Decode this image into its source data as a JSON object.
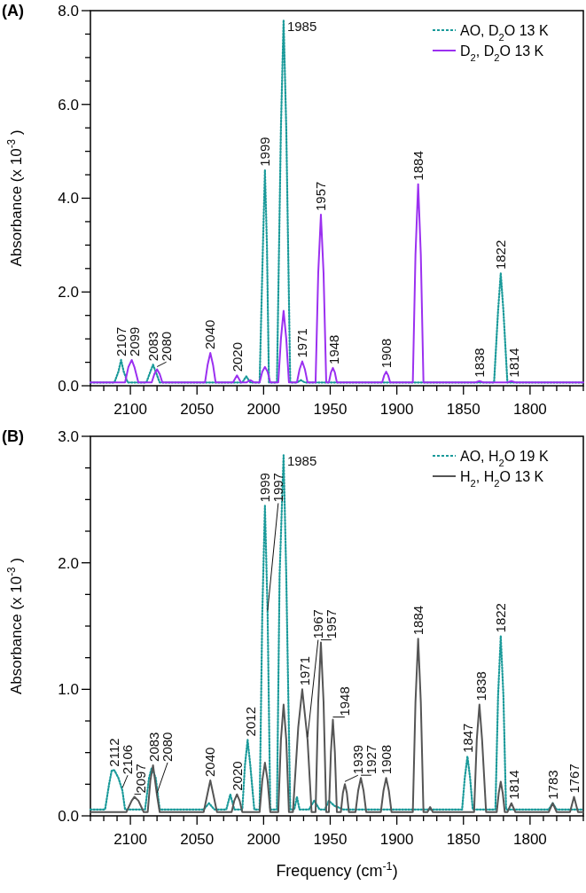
{
  "chart_data": [
    {
      "type": "line",
      "title": "(A)",
      "ylabel": "Absorbance (x 10$^{-3}$ )",
      "legend": "top right",
      "xlim": [
        2130,
        1760
      ],
      "ylim": [
        0,
        8
      ],
      "xticks": [
        {
          "value": 2130,
          "label": null
        },
        {
          "value": 2120,
          "label": null
        },
        {
          "value": 2110,
          "label": null
        },
        2100,
        {
          "value": 2090,
          "label": null
        },
        {
          "value": 2080,
          "label": null
        },
        {
          "value": 2070,
          "label": null
        },
        {
          "value": 2060,
          "label": null
        },
        2050,
        {
          "value": 2040,
          "label": null
        },
        {
          "value": 2030,
          "label": null
        },
        {
          "value": 2020,
          "label": null
        },
        {
          "value": 2010,
          "label": null
        },
        2000,
        {
          "value": 1990,
          "label": null
        },
        {
          "value": 1980,
          "label": null
        },
        {
          "value": 1970,
          "label": null
        },
        {
          "value": 1960,
          "label": null
        },
        1950,
        {
          "value": 1940,
          "label": null
        },
        {
          "value": 1930,
          "label": null
        },
        {
          "value": 1920,
          "label": null
        },
        {
          "value": 1910,
          "label": null
        },
        1900,
        {
          "value": 1890,
          "label": null
        },
        {
          "value": 1880,
          "label": null
        },
        {
          "value": 1870,
          "label": null
        },
        {
          "value": 1860,
          "label": null
        },
        1850,
        {
          "value": 1840,
          "label": null
        },
        {
          "value": 1830,
          "label": null
        },
        {
          "value": 1820,
          "label": null
        },
        {
          "value": 1810,
          "label": null
        },
        1800,
        {
          "value": 1790,
          "label": null
        },
        {
          "value": 1780,
          "label": null
        },
        {
          "value": 1770,
          "label": null
        },
        {
          "value": 1760,
          "label": null
        }
      ],
      "yticks": [
        {
          "value": 0,
          "label": "0.0"
        },
        {
          "value": 0.5,
          "label": null
        },
        {
          "value": 1,
          "label": null
        },
        {
          "value": 1.5,
          "label": null
        },
        {
          "value": 2,
          "label": "2.0"
        },
        {
          "value": 2.5,
          "label": null
        },
        {
          "value": 3,
          "label": null
        },
        {
          "value": 3.5,
          "label": null
        },
        {
          "value": 4,
          "label": "4.0"
        },
        {
          "value": 4.5,
          "label": null
        },
        {
          "value": 5,
          "label": null
        },
        {
          "value": 5.5,
          "label": null
        },
        {
          "value": 6,
          "label": "6.0"
        },
        {
          "value": 6.5,
          "label": null
        },
        {
          "value": 7,
          "label": null
        },
        {
          "value": 7.5,
          "label": null
        },
        {
          "value": 8,
          "label": "8.0"
        }
      ],
      "series": [
        {
          "name": "AO, D$_{2}$O 13 K",
          "color": "#1a9a9a",
          "line_style": "dotted",
          "x": [
            2130,
            2112,
            2109,
            2107,
            2105,
            2102,
            2088,
            2085,
            2083,
            2081,
            2078,
            2016,
            2013,
            2010,
            2003,
            2000.5,
            1999,
            1997.5,
            1996,
            1990,
            1987,
            1985,
            1983,
            1980,
            1975,
            1972,
            1969,
            1827,
            1824,
            1822,
            1820,
            1817,
            1760
          ],
          "values": [
            0.07,
            0.07,
            0.3,
            0.55,
            0.3,
            0.07,
            0.07,
            0.3,
            0.45,
            0.3,
            0.07,
            0.07,
            0.2,
            0.07,
            0.07,
            3.0,
            4.6,
            3.0,
            0.07,
            0.07,
            5.5,
            7.8,
            5.5,
            0.07,
            0.07,
            0.12,
            0.07,
            0.07,
            1.6,
            2.4,
            1.6,
            0.07,
            0.07
          ]
        },
        {
          "name": "D$_{2}$, D$_{2}$O 13 K",
          "color": "#9b30f0",
          "line_style": "solid",
          "x": [
            2130,
            2104,
            2101.5,
            2099,
            2097,
            2094,
            2084,
            2082,
            2080,
            2078,
            2076,
            2044,
            2042,
            2040,
            2038,
            2036,
            2023,
            2020,
            2017,
            2013,
            2010,
            2007,
            2003,
            2001,
            1999,
            1997,
            1995,
            1989,
            1987,
            1985,
            1983,
            1981,
            1975,
            1973,
            1971,
            1969,
            1967,
            1961,
            1959,
            1957,
            1955,
            1953,
            1951,
            1949.5,
            1948,
            1946.5,
            1945,
            1911,
            1909.5,
            1908,
            1906.5,
            1905,
            1888,
            1886,
            1884,
            1882,
            1880,
            1841,
            1838,
            1835,
            1817,
            1814,
            1811,
            1760
          ],
          "values": [
            0.07,
            0.07,
            0.4,
            0.55,
            0.4,
            0.07,
            0.07,
            0.25,
            0.35,
            0.25,
            0.07,
            0.07,
            0.45,
            0.7,
            0.45,
            0.07,
            0.07,
            0.22,
            0.07,
            0.07,
            0.12,
            0.07,
            0.07,
            0.3,
            0.4,
            0.3,
            0.07,
            0.07,
            1.0,
            1.6,
            1.0,
            0.07,
            0.07,
            0.35,
            0.52,
            0.35,
            0.07,
            0.07,
            2.4,
            3.65,
            2.4,
            0.07,
            0.07,
            0.28,
            0.38,
            0.28,
            0.07,
            0.07,
            0.22,
            0.3,
            0.22,
            0.07,
            0.07,
            2.8,
            4.3,
            2.8,
            0.07,
            0.07,
            0.1,
            0.07,
            0.07,
            0.1,
            0.07,
            0.07
          ]
        }
      ],
      "annotations": [
        {
          "text": "2107",
          "x": 2107,
          "y": 0.55
        },
        {
          "text": "2099",
          "x": 2099,
          "y": 0.55
        },
        {
          "text": "2083",
          "x": 2083,
          "y": 0.45
        },
        {
          "text": "2080",
          "x": 2080,
          "y": 0.35
        },
        {
          "text": "2040",
          "x": 2040,
          "y": 0.7
        },
        {
          "text": "2020",
          "x": 2020,
          "y": 0.22
        },
        {
          "text": "1999",
          "x": 1999,
          "y": 4.6
        },
        {
          "text": "1985",
          "x": 1985,
          "y": 7.8
        },
        {
          "text": "1971",
          "x": 1971,
          "y": 0.52
        },
        {
          "text": "1957",
          "x": 1957,
          "y": 3.65
        },
        {
          "text": "1948",
          "x": 1948,
          "y": 0.38
        },
        {
          "text": "1908",
          "x": 1908,
          "y": 0.3
        },
        {
          "text": "1884",
          "x": 1884,
          "y": 4.3
        },
        {
          "text": "1838",
          "x": 1838,
          "y": 0.1
        },
        {
          "text": "1822",
          "x": 1822,
          "y": 2.4
        },
        {
          "text": "1814",
          "x": 1814,
          "y": 0.1
        }
      ]
    },
    {
      "type": "line",
      "title": "(B)",
      "xlabel": "Frequency (cm$^{-1}$)",
      "ylabel": "Absorbance (x 10$^{-3}$ )",
      "legend": "top right",
      "xlim": [
        2130,
        1760
      ],
      "ylim": [
        0,
        3
      ],
      "xticks": [
        {
          "value": 2130,
          "label": null
        },
        {
          "value": 2120,
          "label": null
        },
        {
          "value": 2110,
          "label": null
        },
        2100,
        {
          "value": 2090,
          "label": null
        },
        {
          "value": 2080,
          "label": null
        },
        {
          "value": 2070,
          "label": null
        },
        {
          "value": 2060,
          "label": null
        },
        2050,
        {
          "value": 2040,
          "label": null
        },
        {
          "value": 2030,
          "label": null
        },
        {
          "value": 2020,
          "label": null
        },
        {
          "value": 2010,
          "label": null
        },
        2000,
        {
          "value": 1990,
          "label": null
        },
        {
          "value": 1980,
          "label": null
        },
        {
          "value": 1970,
          "label": null
        },
        {
          "value": 1960,
          "label": null
        },
        1950,
        {
          "value": 1940,
          "label": null
        },
        {
          "value": 1930,
          "label": null
        },
        {
          "value": 1920,
          "label": null
        },
        {
          "value": 1910,
          "label": null
        },
        1900,
        {
          "value": 1890,
          "label": null
        },
        {
          "value": 1880,
          "label": null
        },
        {
          "value": 1870,
          "label": null
        },
        {
          "value": 1860,
          "label": null
        },
        1850,
        {
          "value": 1840,
          "label": null
        },
        {
          "value": 1830,
          "label": null
        },
        {
          "value": 1820,
          "label": null
        },
        {
          "value": 1810,
          "label": null
        },
        1800,
        {
          "value": 1790,
          "label": null
        },
        {
          "value": 1780,
          "label": null
        },
        {
          "value": 1770,
          "label": null
        },
        {
          "value": 1760,
          "label": null
        }
      ],
      "yticks": [
        {
          "value": 0,
          "label": "0.0"
        },
        {
          "value": 0.25,
          "label": null
        },
        {
          "value": 0.5,
          "label": null
        },
        {
          "value": 0.75,
          "label": null
        },
        {
          "value": 1,
          "label": "1.0"
        },
        {
          "value": 1.25,
          "label": null
        },
        {
          "value": 1.5,
          "label": null
        },
        {
          "value": 1.75,
          "label": null
        },
        {
          "value": 2,
          "label": "2.0"
        },
        {
          "value": 2.25,
          "label": null
        },
        {
          "value": 2.5,
          "label": null
        },
        {
          "value": 2.75,
          "label": null
        },
        {
          "value": 3,
          "label": "3.0"
        }
      ],
      "series": [
        {
          "name": "AO, H$_{2}$O 19 K",
          "color": "#1a9a9a",
          "line_style": "dotted",
          "x": [
            2130,
            2119,
            2116,
            2114,
            2112,
            2109,
            2106,
            2104,
            2089,
            2086,
            2084,
            2081,
            2078,
            2045,
            2041,
            2037,
            2028,
            2025,
            2022,
            2016,
            2014,
            2012,
            2010,
            2007,
            2003,
            2001,
            1999,
            1997,
            1995,
            1990,
            1988,
            1985,
            1983,
            1980,
            1977,
            1975,
            1973,
            1966,
            1962,
            1958,
            1954,
            1951,
            1947,
            1940,
            1880,
            1860,
            1851,
            1849,
            1847,
            1845,
            1843,
            1826,
            1824,
            1822,
            1820,
            1818,
            1786,
            1783,
            1780,
            1760
          ],
          "values": [
            0.05,
            0.05,
            0.25,
            0.36,
            0.36,
            0.3,
            0.2,
            0.05,
            0.05,
            0.3,
            0.38,
            0.3,
            0.05,
            0.05,
            0.1,
            0.05,
            0.05,
            0.17,
            0.05,
            0.05,
            0.4,
            0.6,
            0.4,
            0.05,
            0.05,
            1.6,
            2.45,
            1.6,
            0.05,
            0.05,
            1.9,
            2.85,
            1.9,
            0.05,
            0.05,
            0.15,
            0.05,
            0.05,
            0.12,
            0.05,
            0.05,
            0.12,
            0.08,
            0.05,
            0.05,
            0.05,
            0.05,
            0.3,
            0.47,
            0.3,
            0.05,
            0.05,
            0.95,
            1.42,
            0.95,
            0.05,
            0.05,
            0.1,
            0.05,
            0.05
          ]
        },
        {
          "name": "H$_{2}$, H$_{2}$O 13 K",
          "color": "#555555",
          "line_style": "solid",
          "x": [
            2130,
            2103,
            2099,
            2097,
            2094,
            2090,
            2087,
            2085,
            2083,
            2080,
            2078,
            2045,
            2042,
            2040,
            2038,
            2035,
            2024,
            2022,
            2020,
            2018,
            2016,
            2003,
            2001,
            1999,
            1997,
            1995,
            1989,
            1987,
            1985,
            1983,
            1981,
            1978,
            1974,
            1971,
            1967,
            1964,
            1961,
            1959,
            1957,
            1955,
            1953,
            1951,
            1949.5,
            1948,
            1946.5,
            1945,
            1942,
            1940.5,
            1939,
            1937.5,
            1936,
            1931,
            1929,
            1927,
            1925,
            1923,
            1912,
            1910,
            1908,
            1906,
            1904,
            1888,
            1886,
            1884,
            1882,
            1880,
            1877,
            1875,
            1873,
            1842,
            1840,
            1838,
            1836,
            1833,
            1825,
            1823.5,
            1822,
            1820.5,
            1819,
            1817,
            1814,
            1811,
            1786,
            1783,
            1780,
            1770,
            1767,
            1764,
            1760
          ],
          "values": [
            0.03,
            0.03,
            0.12,
            0.15,
            0.12,
            0.03,
            0.03,
            0.28,
            0.4,
            0.16,
            0.03,
            0.03,
            0.18,
            0.28,
            0.18,
            0.03,
            0.03,
            0.12,
            0.17,
            0.12,
            0.03,
            0.03,
            0.28,
            0.42,
            0.28,
            0.03,
            0.03,
            0.6,
            0.88,
            0.6,
            0.03,
            0.03,
            0.7,
            1.0,
            0.6,
            0.03,
            0.03,
            0.9,
            1.37,
            0.9,
            0.03,
            0.03,
            0.5,
            0.76,
            0.5,
            0.03,
            0.03,
            0.18,
            0.25,
            0.18,
            0.03,
            0.03,
            0.2,
            0.3,
            0.2,
            0.03,
            0.03,
            0.2,
            0.3,
            0.2,
            0.03,
            0.03,
            0.9,
            1.4,
            0.9,
            0.03,
            0.03,
            0.07,
            0.03,
            0.03,
            0.6,
            0.88,
            0.6,
            0.03,
            0.03,
            0.18,
            0.27,
            0.18,
            0.03,
            0.03,
            0.1,
            0.03,
            0.03,
            0.1,
            0.03,
            0.03,
            0.15,
            0.03,
            0.03
          ]
        }
      ],
      "annotations": [
        {
          "text": "2112",
          "x": 2112,
          "y": 0.36
        },
        {
          "text": "2106",
          "x": 2106,
          "y": 0.2
        },
        {
          "text": "2097",
          "x": 2097,
          "y": 0.15
        },
        {
          "text": "2083",
          "x": 2083,
          "y": 0.4
        },
        {
          "text": "2080",
          "x": 2080,
          "y": 0.16
        },
        {
          "text": "2040",
          "x": 2040,
          "y": 0.28
        },
        {
          "text": "2020",
          "x": 2020,
          "y": 0.17
        },
        {
          "text": "2012",
          "x": 2012,
          "y": 0.6
        },
        {
          "text": "1999",
          "x": 1999,
          "y": 2.45
        },
        {
          "text": "1997",
          "x": 1997,
          "y": 1.6
        },
        {
          "text": "1985",
          "x": 1985,
          "y": 2.85
        },
        {
          "text": "1971",
          "x": 1971,
          "y": 1.0
        },
        {
          "text": "1967",
          "x": 1967,
          "y": 0.6
        },
        {
          "text": "1957",
          "x": 1957,
          "y": 1.37
        },
        {
          "text": "1948",
          "x": 1948,
          "y": 0.76
        },
        {
          "text": "1939",
          "x": 1939,
          "y": 0.25
        },
        {
          "text": "1927",
          "x": 1927,
          "y": 0.3
        },
        {
          "text": "1908",
          "x": 1908,
          "y": 0.3
        },
        {
          "text": "1884",
          "x": 1884,
          "y": 1.4
        },
        {
          "text": "1847",
          "x": 1847,
          "y": 0.47
        },
        {
          "text": "1838",
          "x": 1838,
          "y": 0.88
        },
        {
          "text": "1822",
          "x": 1822,
          "y": 1.42
        },
        {
          "text": "1814",
          "x": 1814,
          "y": 0.1
        },
        {
          "text": "1783",
          "x": 1783,
          "y": 0.1
        },
        {
          "text": "1767",
          "x": 1767,
          "y": 0.15
        }
      ]
    }
  ]
}
